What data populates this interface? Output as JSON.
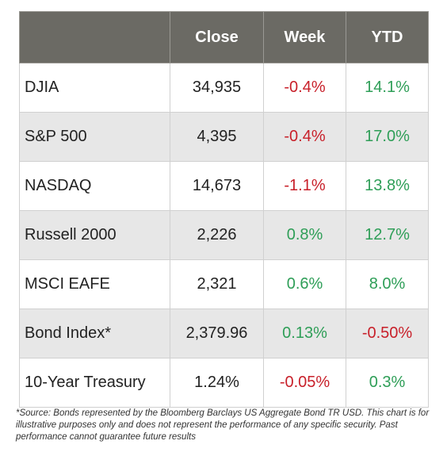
{
  "table": {
    "headers": [
      "",
      "Close",
      "Week",
      "YTD"
    ],
    "rows": [
      {
        "name": "DJIA",
        "close": "34,935",
        "week": "-0.4%",
        "ytd": "14.1%"
      },
      {
        "name": "S&P 500",
        "close": "4,395",
        "week": "-0.4%",
        "ytd": "17.0%"
      },
      {
        "name": "NASDAQ",
        "close": "14,673",
        "week": "-1.1%",
        "ytd": "13.8%"
      },
      {
        "name": "Russell 2000",
        "close": "2,226",
        "week": "0.8%",
        "ytd": "12.7%"
      },
      {
        "name": "MSCI EAFE",
        "close": "2,321",
        "week": "0.6%",
        "ytd": "8.0%"
      },
      {
        "name": "Bond Index*",
        "close": "2,379.96",
        "week": "0.13%",
        "ytd": "-0.50%"
      },
      {
        "name": "10-Year Treasury",
        "close": "1.24%",
        "week": "-0.05%",
        "ytd": "0.3%"
      }
    ]
  },
  "footnote": "*Source: Bonds represented by the Bloomberg Barclays US Aggregate Bond TR USD.  This chart is for illustrative purposes only and does not represent the performance of any specific security. Past performance cannot guarantee future results",
  "colors": {
    "header_bg": "#6b6a64",
    "negative": "#c8202a",
    "positive": "#2e9e57",
    "band": "#e7e7e7"
  }
}
